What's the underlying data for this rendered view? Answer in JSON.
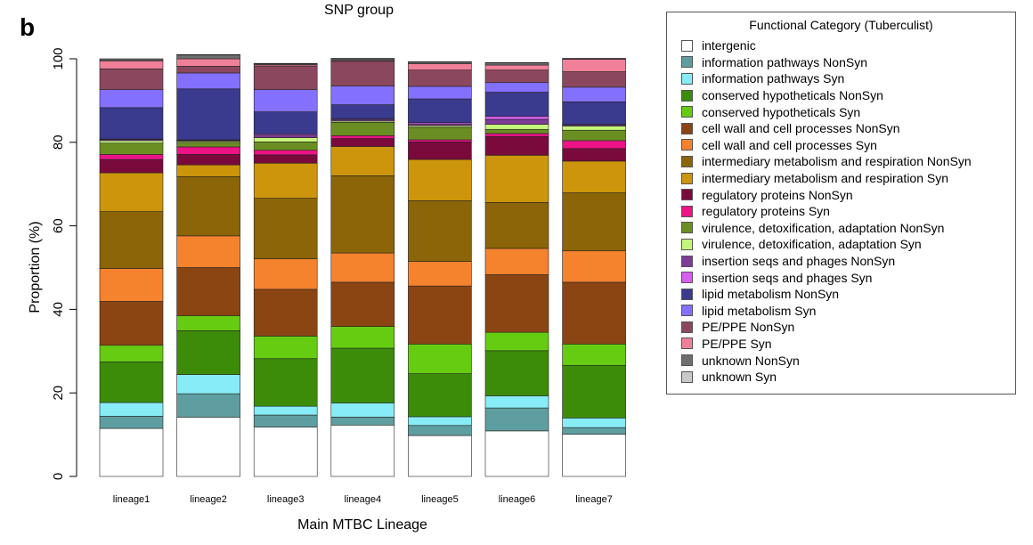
{
  "panel_label": "b",
  "chart_data": {
    "type": "bar",
    "stacked": true,
    "title": "SNP group",
    "xlabel": "Main MTBC Lineage",
    "ylabel": "Proportion (%)",
    "ylim": [
      0,
      100
    ],
    "yticks": [
      0,
      20,
      40,
      60,
      80,
      100
    ],
    "categories": [
      "lineage1",
      "lineage2",
      "lineage3",
      "lineage4",
      "lineage5",
      "lineage6",
      "lineage7"
    ],
    "legend_title": "Functional Category (Tuberculist)",
    "legend_position": "right",
    "series": [
      {
        "name": "intergenic",
        "color": "#ffffff",
        "values": [
          11.5,
          14.2,
          11.8,
          12.3,
          9.8,
          10.9,
          10.1
        ]
      },
      {
        "name": "information pathways NonSyn",
        "color": "#5f9ea0",
        "values": [
          2.9,
          5.6,
          2.9,
          1.9,
          2.4,
          5.5,
          1.6
        ]
      },
      {
        "name": "information pathways Syn",
        "color": "#87ecf5",
        "values": [
          3.3,
          4.6,
          2.1,
          3.4,
          2.1,
          2.9,
          2.3
        ]
      },
      {
        "name": "conserved hypotheticals NonSyn",
        "color": "#3c8c0a",
        "values": [
          9.7,
          10.5,
          11.4,
          13.1,
          10.3,
          10.8,
          12.6
        ]
      },
      {
        "name": "conserved hypotheticals Syn",
        "color": "#66cc11",
        "values": [
          4.0,
          3.6,
          5.4,
          5.2,
          7.1,
          4.4,
          5.1
        ]
      },
      {
        "name": "cell wall and cell processes NonSyn",
        "color": "#8b4513",
        "values": [
          10.5,
          11.5,
          11.2,
          10.6,
          13.9,
          13.8,
          14.8
        ]
      },
      {
        "name": "cell wall and cell processes Syn",
        "color": "#f5822d",
        "values": [
          7.9,
          7.6,
          7.3,
          7.0,
          5.9,
          6.3,
          7.5
        ]
      },
      {
        "name": "intermediary metabolism and respiration NonSyn",
        "color": "#8b6508",
        "values": [
          13.6,
          14.2,
          14.5,
          18.5,
          14.5,
          11.0,
          13.9
        ]
      },
      {
        "name": "intermediary metabolism and respiration Syn",
        "color": "#cd950c",
        "values": [
          9.3,
          2.8,
          8.4,
          7.0,
          9.9,
          11.3,
          7.6
        ]
      },
      {
        "name": "regulatory proteins NonSyn",
        "color": "#7a0a3c",
        "values": [
          3.2,
          2.5,
          2.0,
          1.9,
          4.2,
          4.5,
          3.0
        ]
      },
      {
        "name": "regulatory proteins Syn",
        "color": "#ee1287",
        "values": [
          1.2,
          1.8,
          1.1,
          0.7,
          0.5,
          0.7,
          1.9
        ]
      },
      {
        "name": "virulence, detoxification, adaptation NonSyn",
        "color": "#6b8e23",
        "values": [
          2.7,
          1.1,
          2.0,
          3.2,
          3.0,
          1.0,
          2.5
        ]
      },
      {
        "name": "virulence, detoxification, adaptation Syn",
        "color": "#c6f57c",
        "values": [
          0.6,
          0.3,
          1.0,
          0.3,
          0.4,
          1.2,
          1.0
        ]
      },
      {
        "name": "insertion seqs and phages NonSyn",
        "color": "#7d3c98",
        "values": [
          0.3,
          0.2,
          0.6,
          0.4,
          0.4,
          1.2,
          0.3
        ]
      },
      {
        "name": "insertion seqs and phages Syn",
        "color": "#d65ef0",
        "values": [
          0.1,
          0.1,
          0.3,
          0.1,
          0.3,
          0.7,
          0.1
        ]
      },
      {
        "name": "lipid metabolism NonSyn",
        "color": "#3a3a8f",
        "values": [
          7.5,
          12.2,
          5.3,
          3.4,
          5.7,
          5.8,
          5.4
        ]
      },
      {
        "name": "lipid metabolism Syn",
        "color": "#8470ff",
        "values": [
          4.3,
          3.8,
          5.3,
          4.5,
          3.0,
          2.3,
          3.5
        ]
      },
      {
        "name": "PE/PPE NonSyn",
        "color": "#8b475d",
        "values": [
          5.0,
          1.6,
          5.7,
          5.9,
          3.9,
          3.0,
          3.7
        ]
      },
      {
        "name": "PE/PPE Syn",
        "color": "#f08099",
        "values": [
          1.9,
          1.8,
          0.3,
          0.2,
          1.5,
          1.2,
          3.0
        ]
      },
      {
        "name": "unknown NonSyn",
        "color": "#6e6e6e",
        "values": [
          0.3,
          0.9,
          0.2,
          0.4,
          0.4,
          0.5,
          0.1
        ]
      },
      {
        "name": "unknown Syn",
        "color": "#c8c8c8",
        "values": [
          0.2,
          0.1,
          0.1,
          0.1,
          0.1,
          0.1,
          0.1
        ]
      }
    ]
  }
}
